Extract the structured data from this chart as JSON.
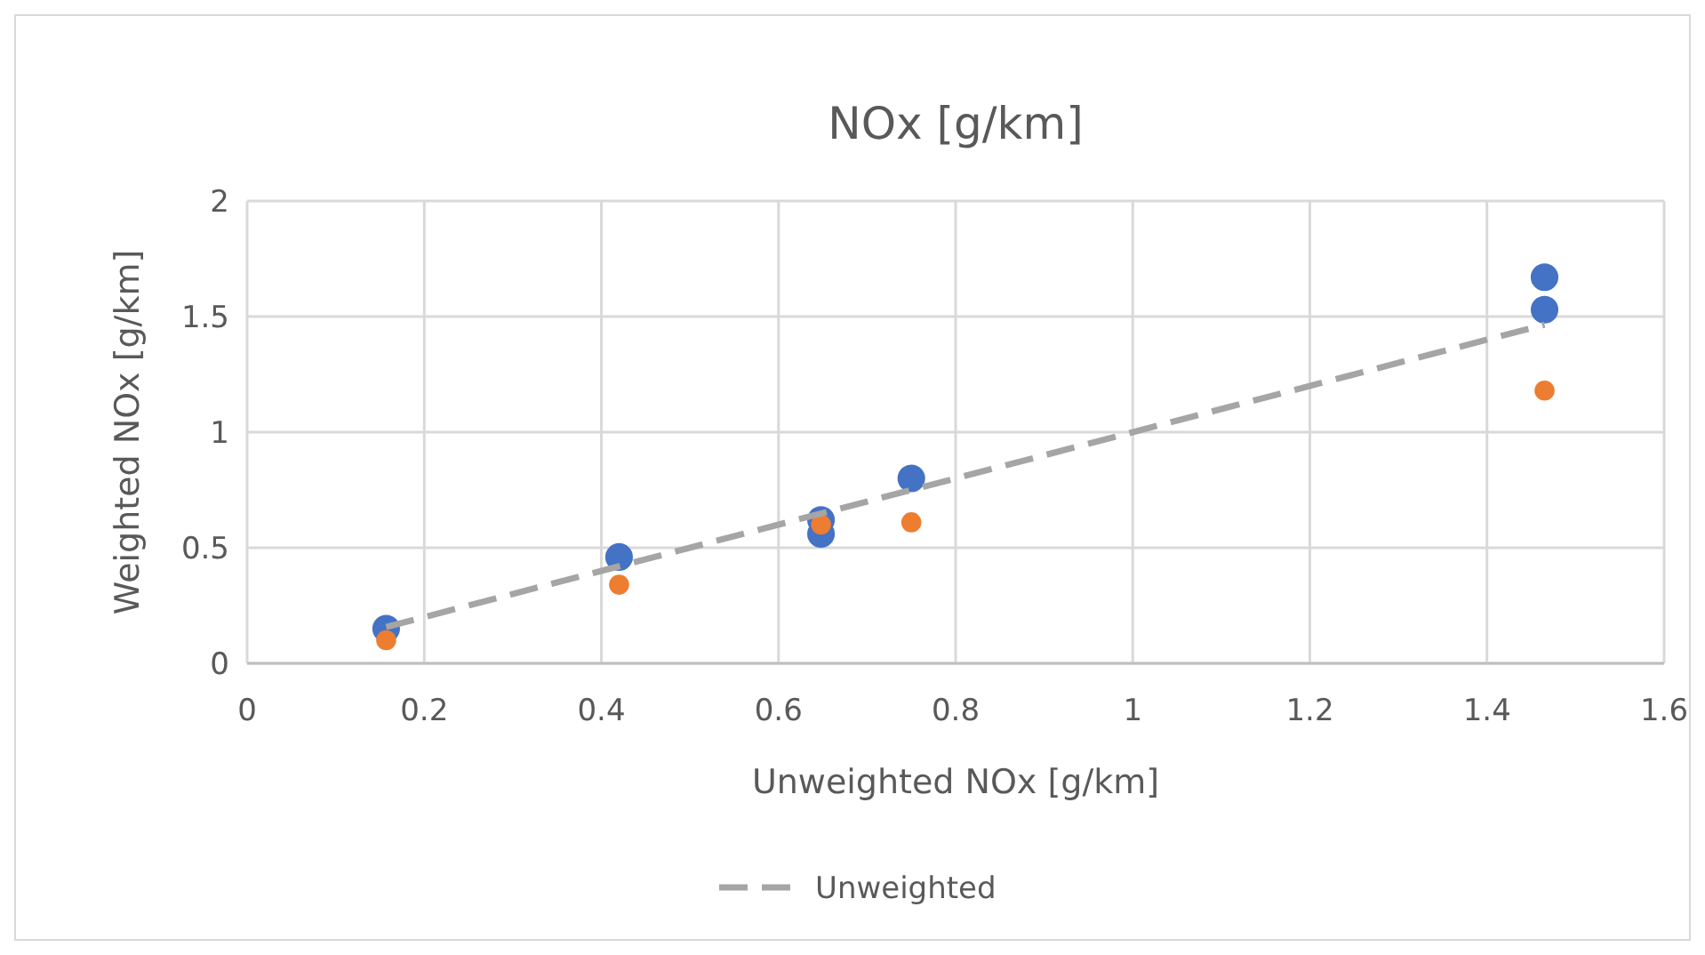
{
  "chart_data": {
    "type": "scatter",
    "title": "NOx [g/km]",
    "xlabel": "Unweighted NOx [g/km]",
    "ylabel": "Weighted NOx [g/km]",
    "xlim": [
      0,
      1.6
    ],
    "xticks": [
      0,
      0.2,
      0.4,
      0.6,
      0.8,
      1,
      1.2,
      1.4,
      1.6
    ],
    "ylim": [
      0,
      2
    ],
    "yticks": [
      0,
      0.5,
      1,
      1.5,
      2
    ],
    "grid": true,
    "legend": "bottom",
    "marker": "circle",
    "series": [
      {
        "color": "#4472c4",
        "x": [
          0.157,
          0.42,
          0.648,
          0.648,
          0.75,
          1.465,
          1.465
        ],
        "values": [
          0.15,
          0.46,
          0.56,
          0.62,
          0.8,
          1.53,
          1.67
        ]
      },
      {
        "color": "#ed7d31",
        "x": [
          0.157,
          0.42,
          0.648,
          0.75,
          1.465
        ],
        "values": [
          0.1,
          0.34,
          0.6,
          0.61,
          1.18
        ]
      },
      {
        "type": "line",
        "name": "Unweighted",
        "color": "#a5a5a5",
        "line_style": "dashed",
        "marker": "none",
        "x": [
          0.157,
          1.465
        ],
        "values": [
          0.157,
          1.465
        ]
      }
    ]
  }
}
